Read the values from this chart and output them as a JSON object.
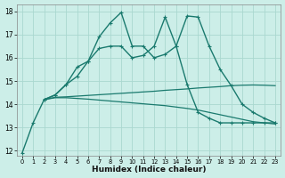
{
  "xlabel": "Humidex (Indice chaleur)",
  "xlim": [
    -0.5,
    23.5
  ],
  "ylim": [
    11.8,
    18.3
  ],
  "yticks": [
    12,
    13,
    14,
    15,
    16,
    17,
    18
  ],
  "xticks": [
    0,
    1,
    2,
    3,
    4,
    5,
    6,
    7,
    8,
    9,
    10,
    11,
    12,
    13,
    14,
    15,
    16,
    17,
    18,
    19,
    20,
    21,
    22,
    23
  ],
  "background_color": "#cceee8",
  "grid_color": "#aad8d0",
  "line_color": "#1a7a6e",
  "series": [
    {
      "x": [
        0,
        1,
        2,
        3,
        4,
        5,
        6,
        7,
        8,
        9,
        10,
        11,
        12,
        13,
        14,
        15,
        16,
        17,
        18,
        19,
        20,
        21,
        22,
        23
      ],
      "y": [
        11.9,
        13.2,
        14.2,
        14.4,
        14.85,
        15.6,
        15.85,
        16.9,
        17.5,
        17.95,
        16.5,
        16.5,
        16.0,
        16.15,
        16.5,
        17.8,
        17.75,
        16.5,
        15.5,
        14.8,
        14.0,
        13.65,
        13.4,
        13.2
      ],
      "marker": true,
      "markersize": 2.0,
      "linewidth": 1.0
    },
    {
      "x": [
        2,
        3,
        4,
        5,
        6,
        7,
        8,
        9,
        10,
        11,
        12,
        13,
        14,
        15,
        16,
        17,
        18,
        19,
        20,
        21,
        22,
        23
      ],
      "y": [
        14.2,
        14.4,
        14.85,
        15.2,
        15.85,
        16.4,
        16.5,
        16.5,
        16.0,
        16.1,
        16.5,
        17.75,
        16.5,
        14.85,
        13.65,
        13.4,
        13.2,
        13.2,
        13.2,
        13.2,
        13.2,
        13.2
      ],
      "marker": true,
      "markersize": 2.0,
      "linewidth": 1.0
    },
    {
      "x": [
        2,
        3,
        4,
        5,
        6,
        7,
        8,
        9,
        10,
        11,
        12,
        13,
        14,
        15,
        16,
        17,
        18,
        19,
        20,
        21,
        22,
        23
      ],
      "y": [
        14.2,
        14.3,
        14.32,
        14.35,
        14.38,
        14.41,
        14.44,
        14.47,
        14.5,
        14.53,
        14.56,
        14.6,
        14.63,
        14.66,
        14.7,
        14.73,
        14.76,
        14.8,
        14.82,
        14.83,
        14.82,
        14.8
      ],
      "marker": false,
      "markersize": 0,
      "linewidth": 0.9
    },
    {
      "x": [
        2,
        3,
        4,
        5,
        6,
        7,
        8,
        9,
        10,
        11,
        12,
        13,
        14,
        15,
        16,
        17,
        18,
        19,
        20,
        21,
        22,
        23
      ],
      "y": [
        14.2,
        14.28,
        14.28,
        14.25,
        14.22,
        14.18,
        14.14,
        14.1,
        14.06,
        14.02,
        13.98,
        13.94,
        13.88,
        13.82,
        13.75,
        13.65,
        13.55,
        13.45,
        13.35,
        13.25,
        13.2,
        13.15
      ],
      "marker": false,
      "markersize": 0,
      "linewidth": 0.9
    }
  ]
}
